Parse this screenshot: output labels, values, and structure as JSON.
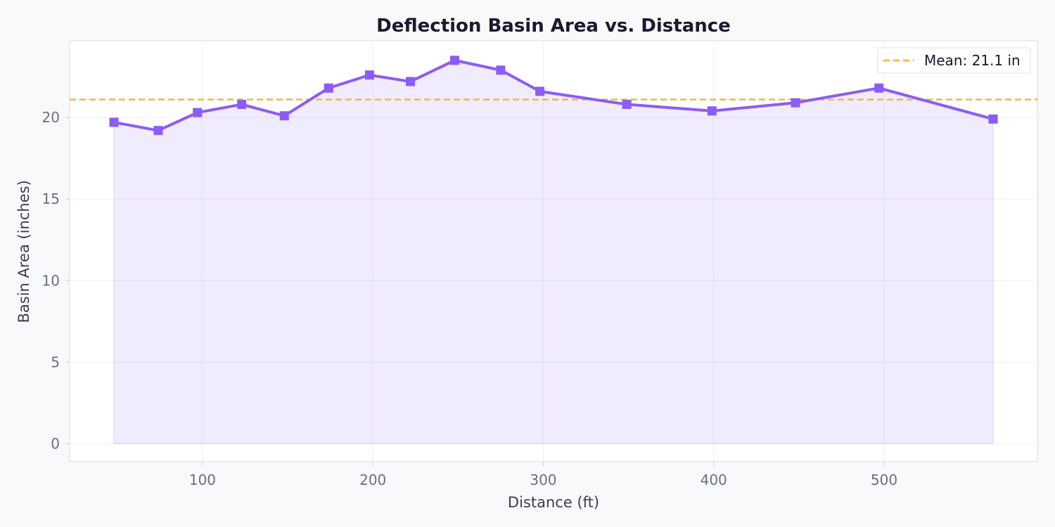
{
  "chart_data": {
    "type": "area",
    "title": "Deflection Basin Area vs. Distance",
    "xlabel": "Distance (ft)",
    "ylabel": "Basin Area (inches)",
    "xlim": [
      22,
      590
    ],
    "ylim": [
      -1.1,
      24.7
    ],
    "xticks": [
      100,
      200,
      300,
      400,
      500
    ],
    "yticks": [
      0,
      5,
      10,
      15,
      20
    ],
    "grid": true,
    "legend_position": "top-right",
    "series": [
      {
        "x": [
          48,
          74,
          97,
          123,
          148,
          174,
          198,
          222,
          248,
          275,
          298,
          349,
          399,
          448,
          497,
          564
        ],
        "y": [
          19.7,
          19.2,
          20.3,
          20.8,
          20.1,
          21.8,
          22.6,
          22.2,
          23.5,
          22.9,
          21.6,
          20.8,
          20.4,
          20.9,
          21.8,
          19.9
        ],
        "color": "#8b5cf6",
        "marker": "square",
        "fill": true
      }
    ],
    "reference_line": {
      "label": "Mean: 21.1 in",
      "y": 21.1,
      "color": "#f5b642",
      "style": "dashed"
    }
  }
}
